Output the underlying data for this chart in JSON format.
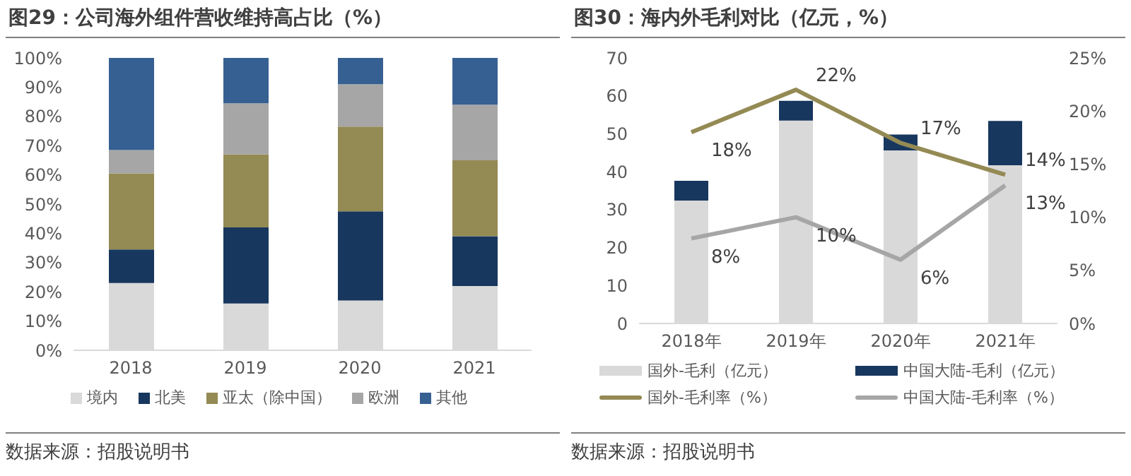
{
  "chart_data": [
    {
      "type": "bar",
      "title": "图29：公司海外组件营收维持高占比（%）",
      "stacked": true,
      "categories": [
        "2018",
        "2019",
        "2020",
        "2021"
      ],
      "series": [
        {
          "name": "境内",
          "color": "#d9d9d9",
          "values": [
            23,
            16,
            17,
            22
          ]
        },
        {
          "name": "北美",
          "color": "#17375e",
          "values": [
            11.5,
            26,
            30.5,
            17
          ]
        },
        {
          "name": "亚太（除中国）",
          "color": "#948a54",
          "values": [
            26,
            25,
            29,
            26
          ]
        },
        {
          "name": "欧洲",
          "color": "#a6a6a6",
          "values": [
            8,
            17.5,
            14.5,
            19
          ]
        },
        {
          "name": "其他",
          "color": "#376092",
          "values": [
            31.5,
            15.5,
            9,
            16
          ]
        }
      ],
      "ylim": [
        0,
        100
      ],
      "yticks": [
        {
          "value": 0,
          "label": "0%"
        },
        {
          "value": 10,
          "label": "10%"
        },
        {
          "value": 20,
          "label": "20%"
        },
        {
          "value": 30,
          "label": "30%"
        },
        {
          "value": 40,
          "label": "40%"
        },
        {
          "value": 50,
          "label": "50%"
        },
        {
          "value": 60,
          "label": "60%"
        },
        {
          "value": 70,
          "label": "70%"
        },
        {
          "value": 80,
          "label": "80%"
        },
        {
          "value": 90,
          "label": "90%"
        },
        {
          "value": 100,
          "label": "100%"
        }
      ],
      "grid": false,
      "legend": "bottom",
      "annotations": [
        "数据来源：招股说明书"
      ]
    },
    {
      "type": "bar",
      "title": "图30：海内外毛利对比（亿元，%）",
      "stacked": true,
      "categories": [
        "2018年",
        "2019年",
        "2020年",
        "2021年"
      ],
      "series": [
        {
          "name": "国外-毛利（亿元）",
          "color": "#d9d9d9",
          "values": [
            32.4,
            53.5,
            45.6,
            41.7
          ]
        },
        {
          "name": "中国大陆-毛利（亿元）",
          "color": "#17375e",
          "values": [
            5.2,
            5.2,
            4.2,
            11.7
          ]
        },
        {
          "name": "国外-毛利率（%）",
          "type": "line",
          "axis": "y2",
          "color": "#948a54",
          "values": [
            18,
            22,
            17,
            14
          ],
          "value_labels": [
            "18%",
            "22%",
            "17%",
            "14%"
          ]
        },
        {
          "name": "中国大陆-毛利率（%）",
          "type": "line",
          "axis": "y2",
          "color": "#a6a6a6",
          "values": [
            8,
            10,
            6,
            13
          ],
          "value_labels": [
            "8%",
            "10%",
            "6%",
            "13%"
          ]
        }
      ],
      "ylim": [
        0,
        70
      ],
      "yticks": [
        0,
        10,
        20,
        30,
        40,
        50,
        60,
        70
      ],
      "y2lim": [
        0,
        25
      ],
      "y2ticks": [
        {
          "value": 0,
          "label": "0%"
        },
        {
          "value": 5,
          "label": "5%"
        },
        {
          "value": 10,
          "label": "10%"
        },
        {
          "value": 15,
          "label": "15%"
        },
        {
          "value": 20,
          "label": "20%"
        },
        {
          "value": 25,
          "label": "25%"
        }
      ],
      "grid": false,
      "legend": "bottom",
      "marker": "none",
      "annotations": [
        "数据来源：招股说明书"
      ]
    }
  ]
}
